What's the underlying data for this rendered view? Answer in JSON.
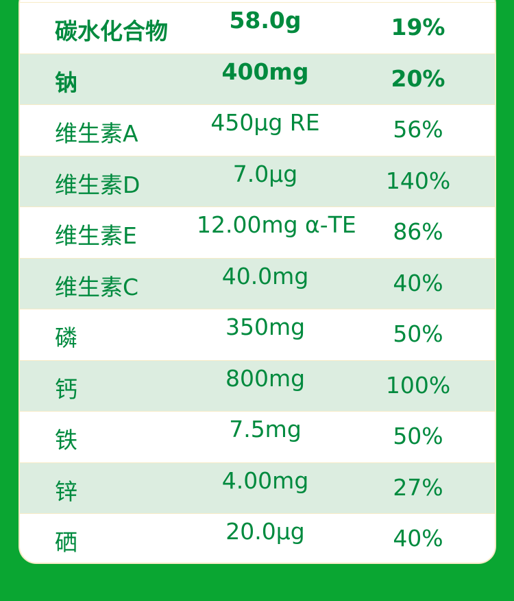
{
  "colors": {
    "background": "#0aa632",
    "text": "#008a3e",
    "row_alt": "#dcede0",
    "border": "#f7ebc6"
  },
  "rows": [
    {
      "name": "碳水化合物",
      "amount": "58.0g",
      "nrv": "19%",
      "bold": true
    },
    {
      "name": "钠",
      "amount": "400mg",
      "nrv": "20%",
      "bold": true
    },
    {
      "name": "维生素A",
      "amount": "450μg RE",
      "nrv": "56%"
    },
    {
      "name": "维生素D",
      "amount": "7.0μg",
      "nrv": "140%"
    },
    {
      "name": "维生素E",
      "amount": "12.00mg α-TE",
      "nrv": "86%"
    },
    {
      "name": "维生素C",
      "amount": "40.0mg",
      "nrv": "40%"
    },
    {
      "name": "磷",
      "amount": "350mg",
      "nrv": "50%"
    },
    {
      "name": "钙",
      "amount": "800mg",
      "nrv": "100%"
    },
    {
      "name": "铁",
      "amount": "7.5mg",
      "nrv": "50%"
    },
    {
      "name": "锌",
      "amount": "4.00mg",
      "nrv": "27%"
    },
    {
      "name": "硒",
      "amount": "20.0μg",
      "nrv": "40%"
    }
  ]
}
